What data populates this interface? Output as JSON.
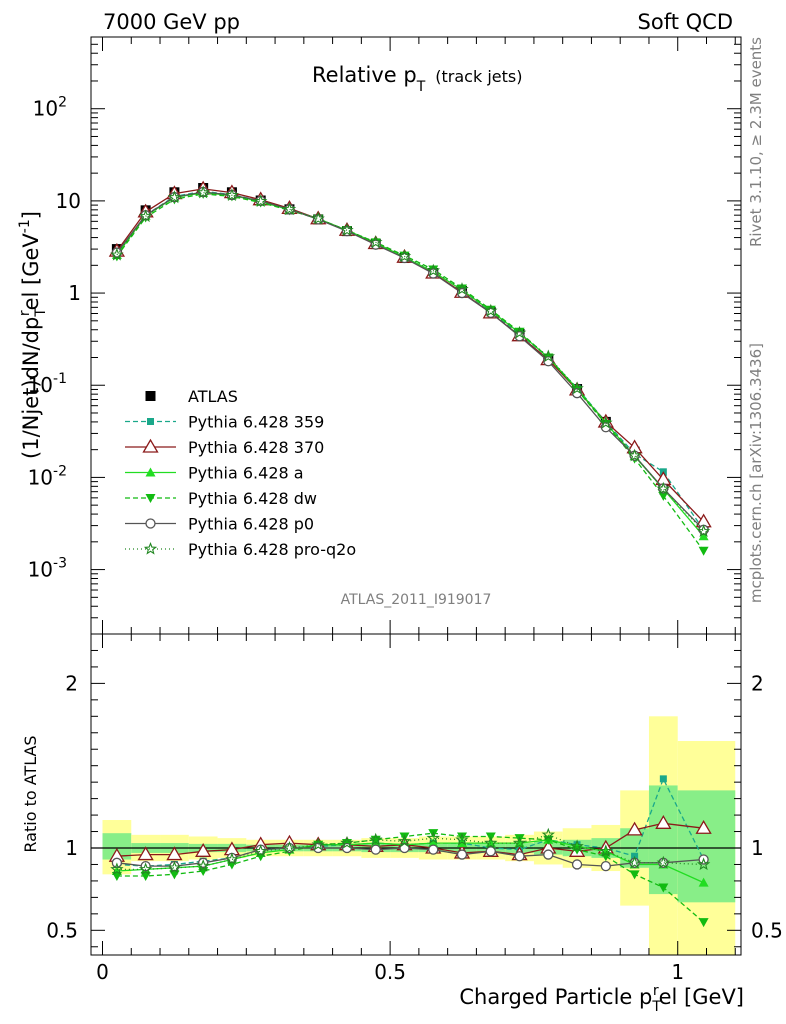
{
  "header": {
    "left": "7000 GeV pp",
    "right": "Soft QCD"
  },
  "side_labels": {
    "rivet": "Rivet 3.1.10, ≥ 2.3M events",
    "mcplots": "mcplots.cern.ch [arXiv:1306.3436]"
  },
  "watermark": "ATLAS_2011_I919017",
  "colors": {
    "atlas": "#000000",
    "p359": "#1aa88a",
    "p370": "#8b1a1a",
    "a": "#22dd22",
    "dw": "#11bb11",
    "p0": "#555555",
    "proq2o": "#228822",
    "band_yellow": "#ffff99",
    "band_green": "#88ee88"
  },
  "chart_data": [
    {
      "type": "line",
      "title": "Relative p",
      "title_sub": "T",
      "title_note": "(track jets)",
      "ylabel": "(1/Njet)dN/dp_T^rel [GeV^-1]",
      "yscale": "log",
      "ylim": [
        0.0002,
        600
      ],
      "xlim": [
        -0.02,
        1.11
      ],
      "yticks": [
        {
          "base": "10",
          "exp": "-3"
        },
        {
          "base": "10",
          "exp": "-2"
        },
        {
          "base": "10",
          "exp": "-1"
        },
        {
          "base": "1",
          "exp": ""
        },
        {
          "base": "10",
          "exp": ""
        },
        {
          "base": "10",
          "exp": "2"
        }
      ],
      "x": [
        0.025,
        0.075,
        0.125,
        0.175,
        0.225,
        0.275,
        0.325,
        0.375,
        0.425,
        0.475,
        0.525,
        0.575,
        0.625,
        0.675,
        0.725,
        0.775,
        0.825,
        0.875,
        0.925,
        0.975,
        1.045
      ],
      "legend": {
        "position": "lower-left"
      },
      "series": [
        {
          "name": "ATLAS",
          "key": "atlas",
          "values": [
            3.0,
            7.9,
            12.4,
            13.8,
            12.4,
            10.1,
            8.1,
            6.3,
            4.7,
            3.4,
            2.4,
            1.65,
            1.05,
            0.62,
            0.36,
            0.19,
            0.091,
            0.04,
            0.019,
            0.0083,
            0.0029
          ]
        },
        {
          "name": "Pythia 6.428 359",
          "key": "p359",
          "values": [
            2.7,
            7.0,
            11.2,
            12.7,
            11.7,
            10.0,
            8.1,
            6.4,
            4.8,
            3.5,
            2.45,
            1.7,
            1.08,
            0.62,
            0.36,
            0.2,
            0.093,
            0.04,
            0.018,
            0.0115,
            0.0027
          ]
        },
        {
          "name": "Pythia 6.428 370",
          "key": "p370",
          "values": [
            2.85,
            7.6,
            12.0,
            13.5,
            12.3,
            10.3,
            8.3,
            6.4,
            4.8,
            3.45,
            2.45,
            1.65,
            1.02,
            0.61,
            0.345,
            0.19,
            0.089,
            0.04,
            0.021,
            0.0095,
            0.0033
          ]
        },
        {
          "name": "Pythia 6.428 a",
          "key": "a",
          "values": [
            2.6,
            6.9,
            10.9,
            12.2,
            11.5,
            9.8,
            8.0,
            6.4,
            4.8,
            3.5,
            2.45,
            1.7,
            1.08,
            0.64,
            0.37,
            0.2,
            0.092,
            0.039,
            0.017,
            0.0075,
            0.0023
          ]
        },
        {
          "name": "Pythia 6.428 dw",
          "key": "dw",
          "values": [
            2.5,
            6.6,
            10.4,
            11.9,
            11.2,
            9.6,
            7.9,
            6.4,
            4.8,
            3.55,
            2.55,
            1.8,
            1.12,
            0.66,
            0.38,
            0.2,
            0.089,
            0.038,
            0.016,
            0.0063,
            0.0016
          ]
        },
        {
          "name": "Pythia 6.428 p0",
          "key": "p0",
          "values": [
            2.75,
            7.0,
            11.0,
            12.5,
            11.6,
            10.0,
            8.1,
            6.3,
            4.7,
            3.35,
            2.4,
            1.63,
            1.0,
            0.61,
            0.34,
            0.182,
            0.082,
            0.035,
            0.0172,
            0.0076,
            0.0027
          ]
        },
        {
          "name": "Pythia 6.428 pro-q2o",
          "key": "proq2o",
          "values": [
            2.6,
            6.8,
            10.9,
            12.3,
            11.5,
            9.9,
            8.1,
            6.4,
            4.8,
            3.55,
            2.5,
            1.75,
            1.1,
            0.64,
            0.37,
            0.205,
            0.092,
            0.039,
            0.0172,
            0.0075,
            0.0026
          ]
        }
      ]
    },
    {
      "type": "line",
      "xlabel": "Charged Particle p_T^rel [GeV]",
      "ylabel": "Ratio to ATLAS",
      "ylim": [
        0.35,
        2.3
      ],
      "xlim": [
        -0.02,
        1.11
      ],
      "yticks": [
        "0.5",
        "1",
        "2"
      ],
      "xticks": [
        "0",
        "0.5",
        "1"
      ],
      "x": [
        0.025,
        0.075,
        0.125,
        0.175,
        0.225,
        0.275,
        0.325,
        0.375,
        0.425,
        0.475,
        0.525,
        0.575,
        0.625,
        0.675,
        0.725,
        0.775,
        0.825,
        0.875,
        0.925,
        0.975,
        1.045
      ],
      "bins": [
        [
          0.0,
          0.05
        ],
        [
          0.05,
          0.1
        ],
        [
          0.1,
          0.15
        ],
        [
          0.15,
          0.2
        ],
        [
          0.2,
          0.25
        ],
        [
          0.25,
          0.3
        ],
        [
          0.3,
          0.35
        ],
        [
          0.35,
          0.4
        ],
        [
          0.4,
          0.45
        ],
        [
          0.45,
          0.5
        ],
        [
          0.5,
          0.55
        ],
        [
          0.55,
          0.6
        ],
        [
          0.6,
          0.65
        ],
        [
          0.65,
          0.7
        ],
        [
          0.7,
          0.75
        ],
        [
          0.75,
          0.8
        ],
        [
          0.8,
          0.85
        ],
        [
          0.85,
          0.9
        ],
        [
          0.9,
          0.95
        ],
        [
          0.95,
          1.0
        ],
        [
          1.0,
          1.1
        ]
      ],
      "band_yellow": [
        [
          0.84,
          1.17
        ],
        [
          0.92,
          1.08
        ],
        [
          0.92,
          1.08
        ],
        [
          0.93,
          1.07
        ],
        [
          0.94,
          1.06
        ],
        [
          0.95,
          1.05
        ],
        [
          0.95,
          1.05
        ],
        [
          0.95,
          1.05
        ],
        [
          0.95,
          1.05
        ],
        [
          0.94,
          1.06
        ],
        [
          0.94,
          1.06
        ],
        [
          0.93,
          1.07
        ],
        [
          0.93,
          1.07
        ],
        [
          0.93,
          1.07
        ],
        [
          0.92,
          1.08
        ],
        [
          0.9,
          1.1
        ],
        [
          0.88,
          1.12
        ],
        [
          0.86,
          1.14
        ],
        [
          0.65,
          1.35
        ],
        [
          0.35,
          1.8
        ],
        [
          0.35,
          1.65
        ]
      ],
      "band_green": [
        [
          0.93,
          1.09
        ],
        [
          0.97,
          1.03
        ],
        [
          0.97,
          1.03
        ],
        [
          0.975,
          1.025
        ],
        [
          0.975,
          1.025
        ],
        [
          0.98,
          1.02
        ],
        [
          0.98,
          1.02
        ],
        [
          0.98,
          1.02
        ],
        [
          0.98,
          1.02
        ],
        [
          0.975,
          1.025
        ],
        [
          0.975,
          1.025
        ],
        [
          0.975,
          1.025
        ],
        [
          0.97,
          1.03
        ],
        [
          0.97,
          1.03
        ],
        [
          0.97,
          1.03
        ],
        [
          0.96,
          1.04
        ],
        [
          0.95,
          1.05
        ],
        [
          0.94,
          1.06
        ],
        [
          0.88,
          1.12
        ],
        [
          0.72,
          1.38
        ],
        [
          0.67,
          1.35
        ]
      ],
      "series": [
        {
          "name": "Pythia 6.428 359",
          "key": "p359",
          "values": [
            0.9,
            0.89,
            0.9,
            0.92,
            0.94,
            0.99,
            1.0,
            1.01,
            1.02,
            1.03,
            1.02,
            1.03,
            1.03,
            1.0,
            0.99,
            1.05,
            1.02,
            1.0,
            0.95,
            1.42,
            0.93
          ]
        },
        {
          "name": "Pythia 6.428 370",
          "key": "p370",
          "values": [
            0.95,
            0.96,
            0.96,
            0.98,
            0.99,
            1.02,
            1.03,
            1.02,
            1.02,
            1.01,
            1.02,
            1.0,
            0.97,
            0.98,
            0.96,
            1.0,
            0.98,
            1.0,
            1.11,
            1.15,
            1.12
          ]
        },
        {
          "name": "Pythia 6.428 a",
          "key": "a",
          "values": [
            0.86,
            0.87,
            0.88,
            0.89,
            0.93,
            0.97,
            0.99,
            1.02,
            1.02,
            1.03,
            1.02,
            1.03,
            1.03,
            1.03,
            1.03,
            1.05,
            1.01,
            0.98,
            0.9,
            0.9,
            0.79
          ]
        },
        {
          "name": "Pythia 6.428 dw",
          "key": "dw",
          "values": [
            0.83,
            0.83,
            0.84,
            0.86,
            0.9,
            0.95,
            0.98,
            1.02,
            1.03,
            1.05,
            1.07,
            1.09,
            1.07,
            1.07,
            1.06,
            1.05,
            0.99,
            0.95,
            0.84,
            0.76,
            0.55
          ]
        },
        {
          "name": "Pythia 6.428 p0",
          "key": "p0",
          "values": [
            0.91,
            0.89,
            0.89,
            0.91,
            0.94,
            0.99,
            1.0,
            1.0,
            1.0,
            0.99,
            1.0,
            0.99,
            0.96,
            0.98,
            0.95,
            0.96,
            0.9,
            0.89,
            0.91,
            0.91,
            0.93
          ]
        },
        {
          "name": "Pythia 6.428 pro-q2o",
          "key": "proq2o",
          "values": [
            0.87,
            0.87,
            0.88,
            0.89,
            0.93,
            0.98,
            1.0,
            1.02,
            1.03,
            1.05,
            1.04,
            1.06,
            1.05,
            1.03,
            1.03,
            1.08,
            1.01,
            0.98,
            0.91,
            0.91,
            0.9
          ]
        }
      ]
    }
  ]
}
